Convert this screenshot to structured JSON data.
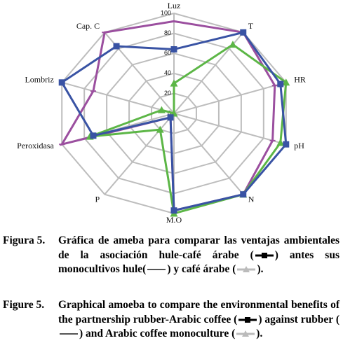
{
  "chart_data": {
    "type": "radar",
    "categories": [
      "Luz",
      "T",
      "HR",
      "pH",
      "N",
      "M.O",
      "P",
      "Peroxidasa",
      "Lombriz",
      "Cap. C"
    ],
    "ylim": [
      0,
      100
    ],
    "yticks": [
      0,
      20,
      40,
      60,
      80,
      100
    ],
    "grid": true,
    "series": [
      {
        "color": "#9b4f9f",
        "marker": "none",
        "values": [
          92,
          100,
          90,
          88,
          100,
          97,
          5,
          100,
          72,
          100
        ]
      },
      {
        "color": "#5cb646",
        "marker": "triangle",
        "values": [
          30,
          85,
          100,
          95,
          100,
          100,
          20,
          75,
          11,
          0
        ]
      },
      {
        "color": "#3953a4",
        "marker": "square",
        "values": [
          64,
          100,
          95,
          100,
          100,
          97,
          5,
          72,
          100,
          83
        ]
      }
    ]
  },
  "captions": [
    {
      "label": "Figura 5.",
      "parts": [
        "Gráfica de ameba para comparar las ventajas ambientales de la asociación hule-café árabe (",
        ") antes sus monocultivos hule(",
        ") y café árabe (",
        ")."
      ]
    },
    {
      "label": "Figure 5.",
      "parts": [
        "Graphical amoeba to compare the environmental benefits of the partnership rubber-Arabic coffee (",
        ") against rubber (",
        ") and Arabic coffee monoculture (",
        ")."
      ]
    }
  ]
}
